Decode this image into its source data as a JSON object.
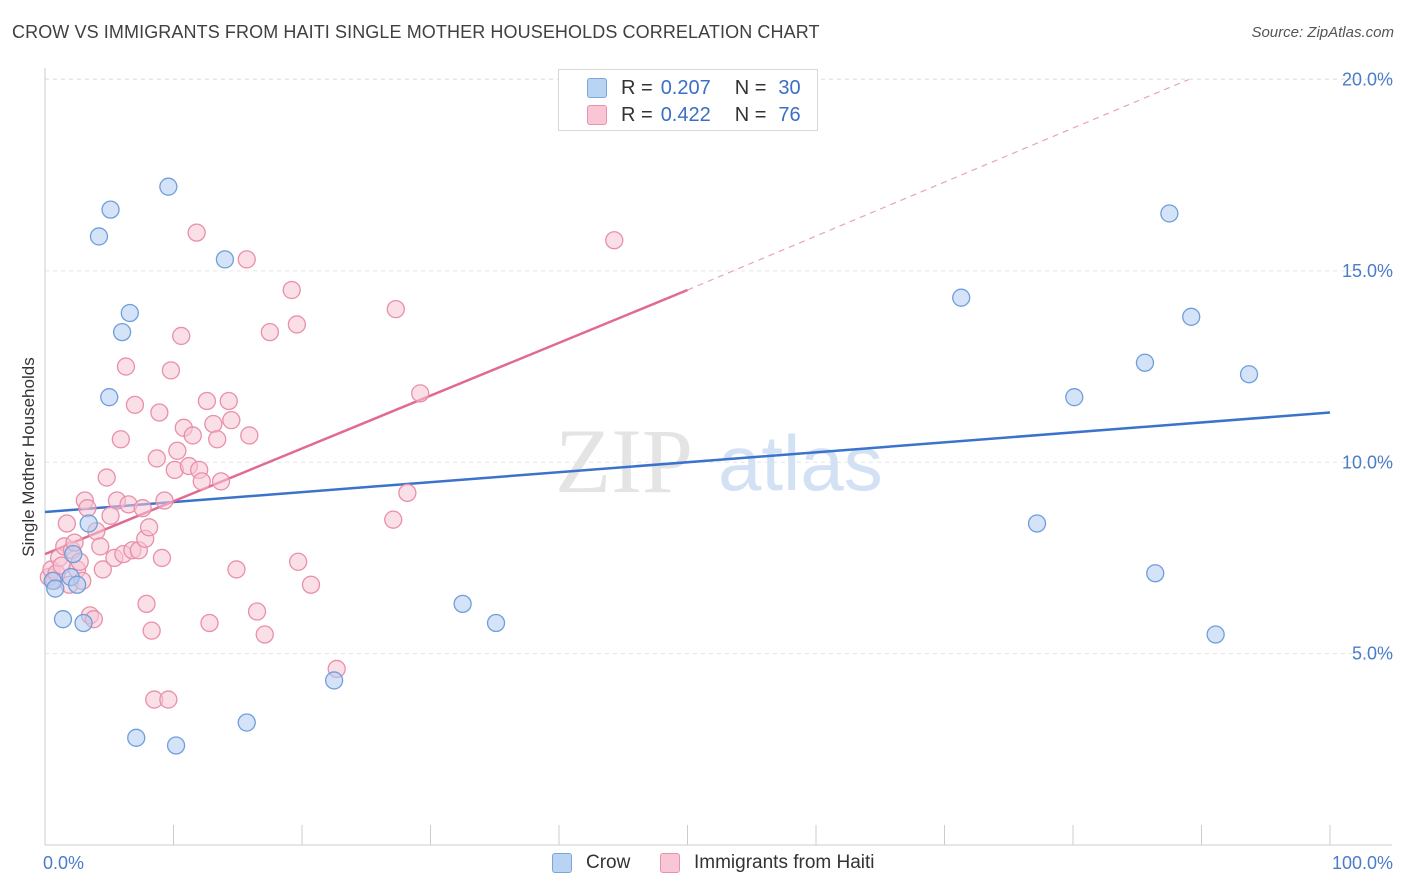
{
  "header": {
    "title": "CROW VS IMMIGRANTS FROM HAITI SINGLE MOTHER HOUSEHOLDS CORRELATION CHART",
    "source": "Source: ZipAtlas.com"
  },
  "watermark": {
    "zip": "ZIP",
    "atlas": "atlas"
  },
  "legend": {
    "rows": [
      {
        "r_label": "R =",
        "r_value": "0.207",
        "n_label": "N =",
        "n_value": "30",
        "fill": "#b9d3f3",
        "stroke": "#7aa6dc"
      },
      {
        "r_label": "R =",
        "r_value": "0.422",
        "n_label": "N =",
        "n_value": "76",
        "fill": "#f8c6d5",
        "stroke": "#e893ad"
      }
    ]
  },
  "bottom_legend": {
    "items": [
      {
        "label": "Crow",
        "fill": "#b9d3f3",
        "stroke": "#7aa6dc"
      },
      {
        "label": "Immigrants from Haiti",
        "fill": "#f8c6d5",
        "stroke": "#e893ad"
      }
    ]
  },
  "chart_data": {
    "type": "scatter",
    "title": "CROW VS IMMIGRANTS FROM HAITI SINGLE MOTHER HOUSEHOLDS CORRELATION CHART",
    "xlabel": "",
    "ylabel": "Single Mother Households",
    "xlim": [
      0,
      100
    ],
    "ylim": [
      0,
      20.5
    ],
    "x_tick_labels": [
      {
        "value": 0,
        "label": "0.0%"
      },
      {
        "value": 100,
        "label": "100.0%"
      }
    ],
    "x_minor_ticks": [
      0,
      10,
      20,
      30,
      40,
      50,
      60,
      70,
      80,
      90,
      100
    ],
    "y_ticks": [
      {
        "value": 5,
        "label": "5.0%"
      },
      {
        "value": 10,
        "label": "10.0%"
      },
      {
        "value": 15,
        "label": "15.0%"
      },
      {
        "value": 20,
        "label": "20.0%"
      }
    ],
    "series": [
      {
        "name": "Crow",
        "color": "#6f9fdb",
        "fill": "rgba(176,204,240,0.55)",
        "line_color": "#3b73cc",
        "trend": {
          "x0": 0,
          "y0": 8.7,
          "x1": 100,
          "y1": 11.3
        },
        "points": [
          [
            0.6,
            6.9
          ],
          [
            0.8,
            6.7
          ],
          [
            1.4,
            5.9
          ],
          [
            2.0,
            7.0
          ],
          [
            2.2,
            7.6
          ],
          [
            2.5,
            6.8
          ],
          [
            3.0,
            5.8
          ],
          [
            3.4,
            8.4
          ],
          [
            4.2,
            15.9
          ],
          [
            5.1,
            16.6
          ],
          [
            5.0,
            11.7
          ],
          [
            6.0,
            13.4
          ],
          [
            6.6,
            13.9
          ],
          [
            7.1,
            2.8
          ],
          [
            9.6,
            17.2
          ],
          [
            10.2,
            2.6
          ],
          [
            14.0,
            15.3
          ],
          [
            15.7,
            3.2
          ],
          [
            22.5,
            4.3
          ],
          [
            32.5,
            6.3
          ],
          [
            35.1,
            5.8
          ],
          [
            71.3,
            14.3
          ],
          [
            77.2,
            8.4
          ],
          [
            80.1,
            11.7
          ],
          [
            85.6,
            12.6
          ],
          [
            86.4,
            7.1
          ],
          [
            87.5,
            16.5
          ],
          [
            89.2,
            13.8
          ],
          [
            91.1,
            5.5
          ],
          [
            93.7,
            12.3
          ]
        ]
      },
      {
        "name": "Immigrants from Haiti",
        "color": "#e98fab",
        "fill": "rgba(247,196,212,0.55)",
        "line_color": "#e06a92",
        "trend": {
          "x0": 0,
          "y0": 7.6,
          "x1": 50,
          "y1": 14.5
        },
        "trend_ext": {
          "x0": 50,
          "y0": 14.5,
          "x1": 89,
          "y1": 20.0
        },
        "points": [
          [
            0.3,
            7.0
          ],
          [
            0.5,
            7.2
          ],
          [
            0.7,
            6.9
          ],
          [
            0.9,
            7.1
          ],
          [
            1.1,
            7.5
          ],
          [
            1.3,
            7.3
          ],
          [
            1.5,
            7.8
          ],
          [
            1.7,
            8.4
          ],
          [
            1.9,
            6.8
          ],
          [
            2.1,
            7.7
          ],
          [
            2.3,
            7.9
          ],
          [
            2.5,
            7.2
          ],
          [
            2.7,
            7.4
          ],
          [
            2.9,
            6.9
          ],
          [
            3.1,
            9.0
          ],
          [
            3.3,
            8.8
          ],
          [
            3.5,
            6.0
          ],
          [
            3.8,
            5.9
          ],
          [
            4.0,
            8.2
          ],
          [
            4.3,
            7.8
          ],
          [
            4.5,
            7.2
          ],
          [
            4.8,
            9.6
          ],
          [
            5.1,
            8.6
          ],
          [
            5.4,
            7.5
          ],
          [
            5.6,
            9.0
          ],
          [
            5.9,
            10.6
          ],
          [
            6.1,
            7.6
          ],
          [
            6.3,
            12.5
          ],
          [
            6.5,
            8.9
          ],
          [
            6.8,
            7.7
          ],
          [
            7.0,
            11.5
          ],
          [
            7.3,
            7.7
          ],
          [
            7.6,
            8.8
          ],
          [
            7.8,
            8.0
          ],
          [
            7.9,
            6.3
          ],
          [
            8.1,
            8.3
          ],
          [
            8.3,
            5.6
          ],
          [
            8.5,
            3.8
          ],
          [
            8.7,
            10.1
          ],
          [
            8.9,
            11.3
          ],
          [
            9.1,
            7.5
          ],
          [
            9.3,
            9.0
          ],
          [
            9.6,
            3.8
          ],
          [
            9.8,
            12.4
          ],
          [
            10.1,
            9.8
          ],
          [
            10.3,
            10.3
          ],
          [
            10.6,
            13.3
          ],
          [
            10.8,
            10.9
          ],
          [
            11.2,
            9.9
          ],
          [
            11.5,
            10.7
          ],
          [
            11.8,
            16.0
          ],
          [
            12.0,
            9.8
          ],
          [
            12.2,
            9.5
          ],
          [
            12.6,
            11.6
          ],
          [
            12.8,
            5.8
          ],
          [
            13.1,
            11.0
          ],
          [
            13.4,
            10.6
          ],
          [
            13.7,
            9.5
          ],
          [
            14.3,
            11.6
          ],
          [
            14.5,
            11.1
          ],
          [
            14.9,
            7.2
          ],
          [
            15.7,
            15.3
          ],
          [
            15.9,
            10.7
          ],
          [
            16.5,
            6.1
          ],
          [
            17.1,
            5.5
          ],
          [
            17.5,
            13.4
          ],
          [
            19.2,
            14.5
          ],
          [
            19.6,
            13.6
          ],
          [
            19.7,
            7.4
          ],
          [
            20.7,
            6.8
          ],
          [
            22.7,
            4.6
          ],
          [
            27.1,
            8.5
          ],
          [
            27.3,
            14.0
          ],
          [
            28.2,
            9.2
          ],
          [
            29.2,
            11.8
          ],
          [
            44.3,
            15.8
          ]
        ]
      }
    ]
  }
}
